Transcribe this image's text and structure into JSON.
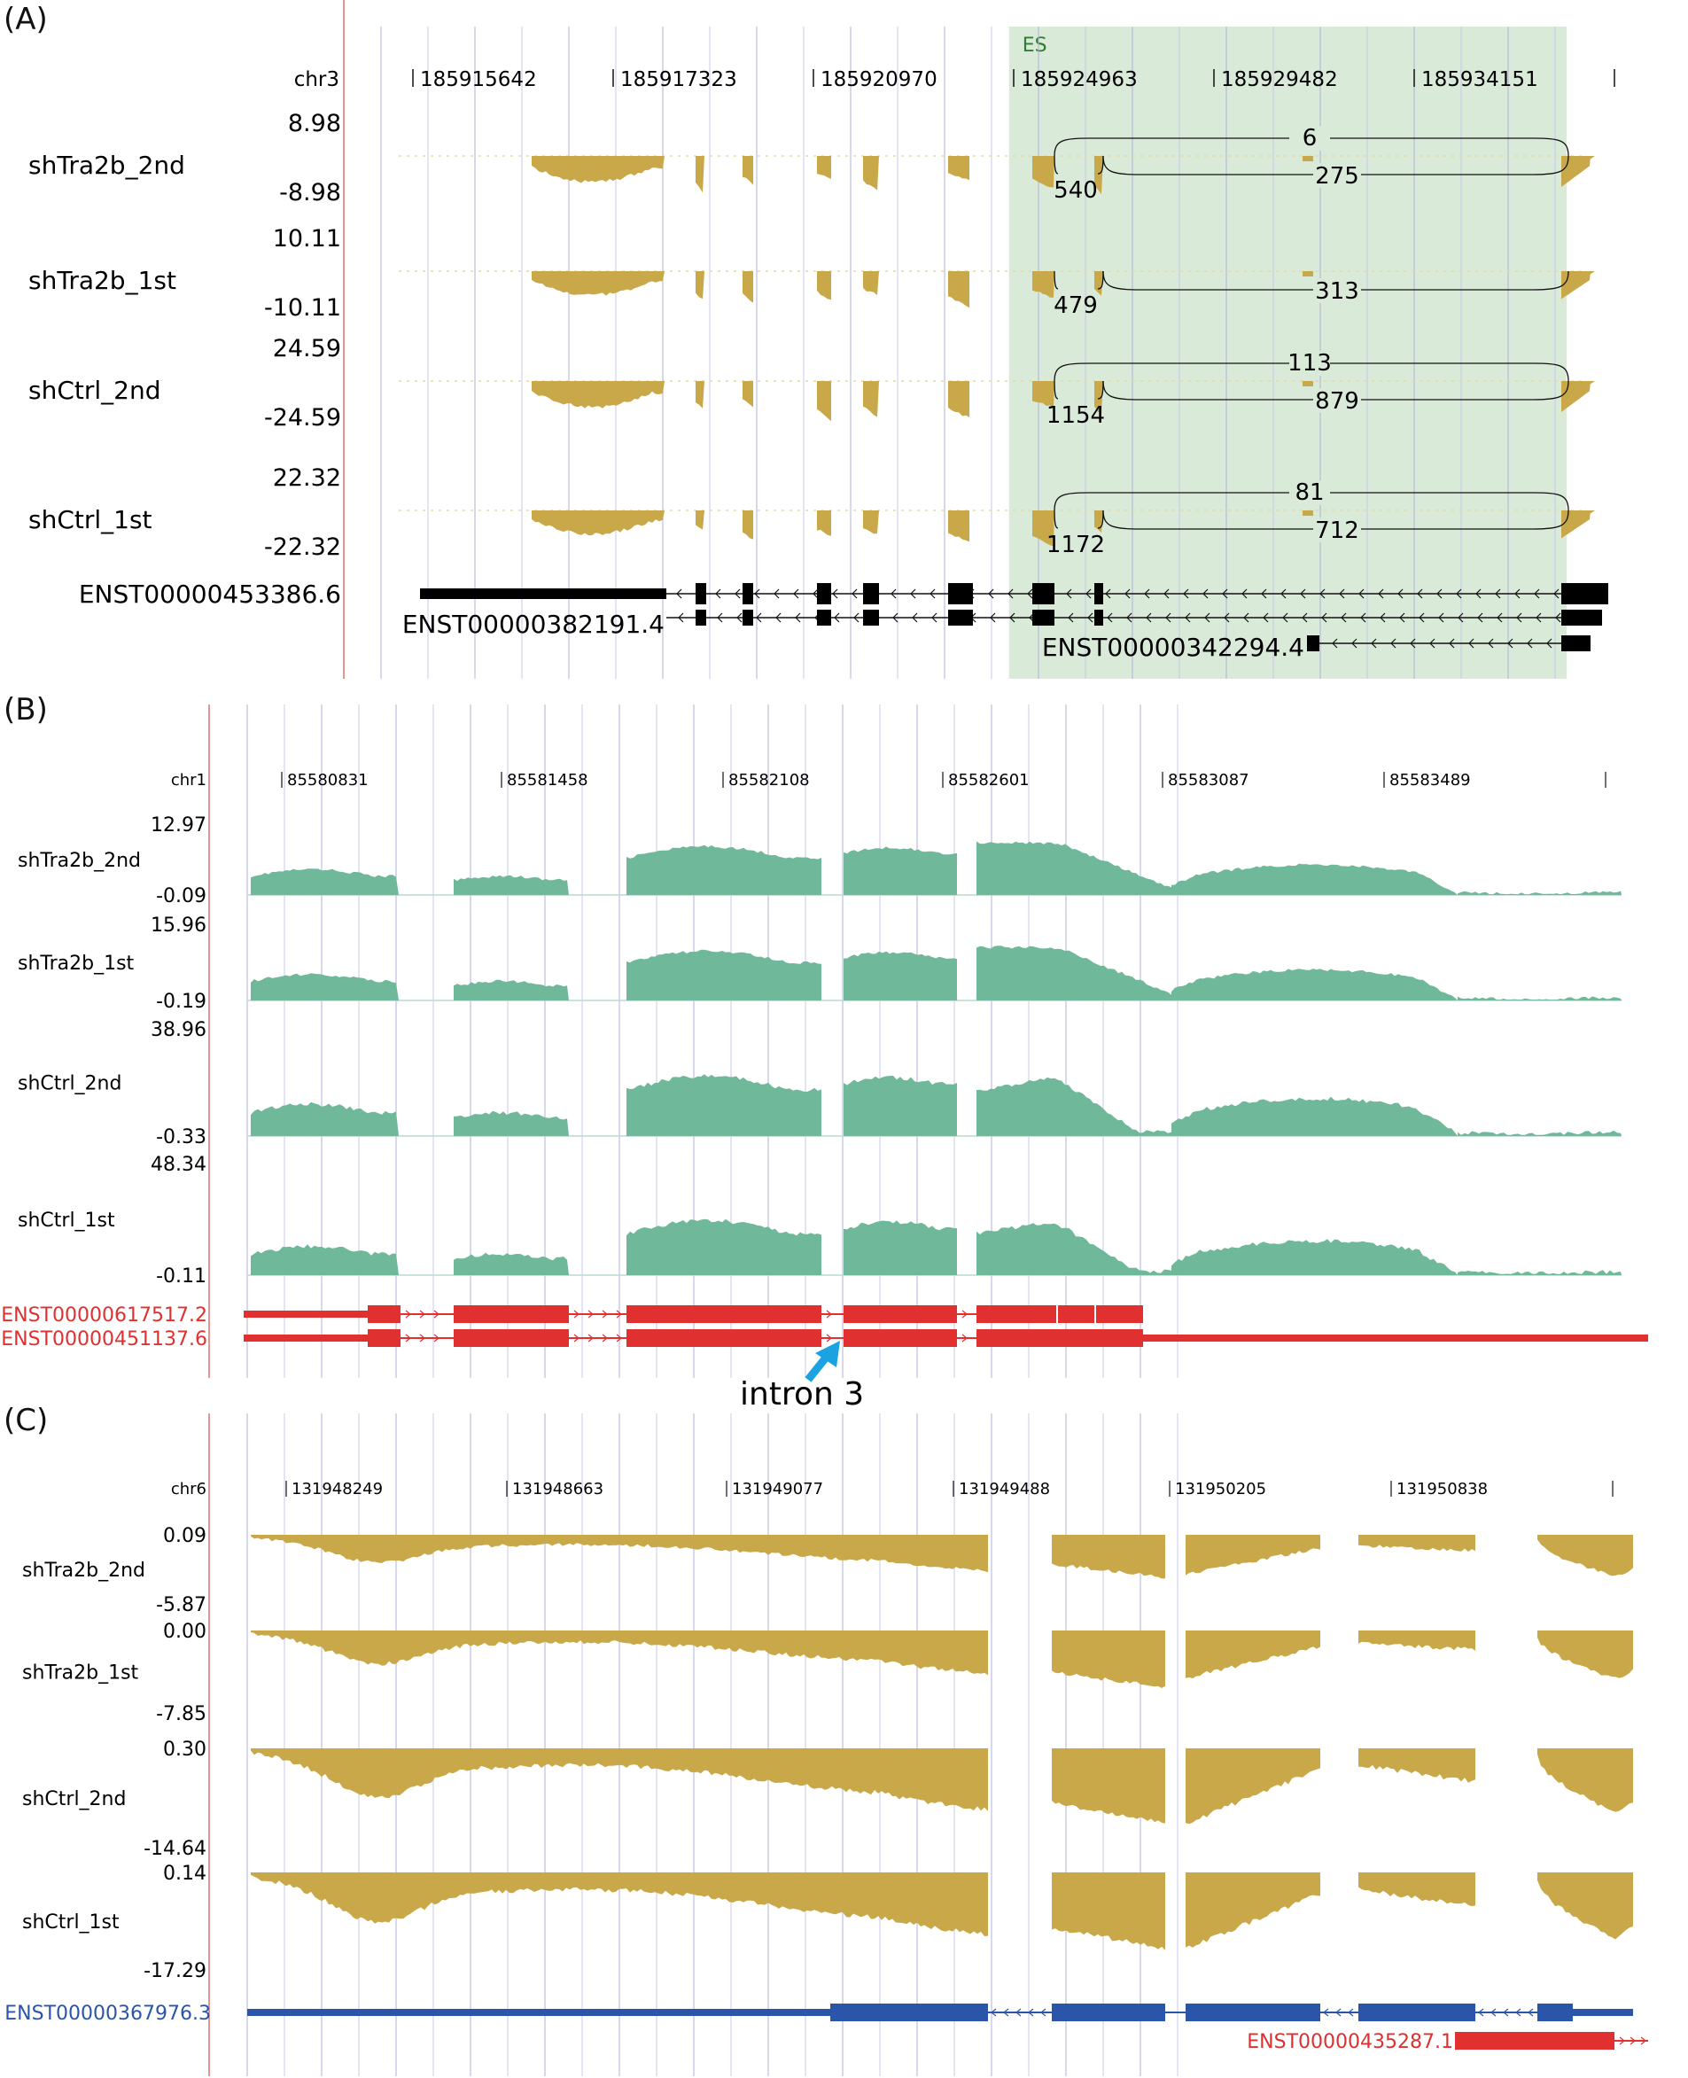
{
  "chart_data": [
    {
      "type": "area",
      "panel_label": "(A)",
      "chrom": "chr3",
      "coord_ticks": [
        "185915642",
        "185917323",
        "185920970",
        "185924963",
        "185929482",
        "185934151"
      ],
      "highlight_label": "ES",
      "highlight_range": [
        185925400,
        185936600
      ],
      "x_range": [
        185913500,
        185937700
      ],
      "color": "#c9a84a",
      "tracks": [
        {
          "name": "shTra2b_2nd",
          "ymax": "8.98",
          "ymin": "-8.98",
          "junctions": [
            "6",
            "540",
            "275"
          ]
        },
        {
          "name": "shTra2b_1st",
          "ymax": "10.11",
          "ymin": "-10.11",
          "junctions": [
            "",
            "479",
            "313"
          ]
        },
        {
          "name": "shCtrl_2nd",
          "ymax": "24.59",
          "ymin": "-24.59",
          "junctions": [
            "113",
            "1154",
            "879"
          ]
        },
        {
          "name": "shCtrl_1st",
          "ymax": "22.32",
          "ymin": "-22.32",
          "junctions": [
            "81",
            "1172",
            "712"
          ]
        }
      ],
      "transcripts": [
        "ENST00000453386.6",
        "ENST00000382191.4",
        "ENST00000342294.4"
      ]
    },
    {
      "type": "area",
      "panel_label": "(B)",
      "chrom": "chr1",
      "coord_ticks": [
        "85580831",
        "85581458",
        "85582108",
        "85582601",
        "85583087",
        "85583489"
      ],
      "x_range": [
        85580700,
        85584000
      ],
      "color": "#6fb89a",
      "tracks": [
        {
          "name": "shTra2b_2nd",
          "ymax": "12.97",
          "ymin": "-0.09"
        },
        {
          "name": "shTra2b_1st",
          "ymax": "15.96",
          "ymin": "-0.19"
        },
        {
          "name": "shCtrl_2nd",
          "ymax": "38.96",
          "ymin": "-0.33"
        },
        {
          "name": "shCtrl_1st",
          "ymax": "48.34",
          "ymin": "-0.11"
        }
      ],
      "transcripts": [
        "ENST00000617517.2",
        "ENST00000451137.6"
      ],
      "annotation": "intron 3"
    },
    {
      "type": "area",
      "panel_label": "(C)",
      "chrom": "chr6",
      "coord_ticks": [
        "131948249",
        "131948663",
        "131949077",
        "131949488",
        "131950205",
        "131950838"
      ],
      "x_range": [
        131948100,
        131951400
      ],
      "color": "#c9a84a",
      "tracks": [
        {
          "name": "shTra2b_2nd",
          "ymax": "0.09",
          "ymin": "-5.87"
        },
        {
          "name": "shTra2b_1st",
          "ymax": "0.00",
          "ymin": "-7.85"
        },
        {
          "name": "shCtrl_2nd",
          "ymax": "0.30",
          "ymin": "-14.64"
        },
        {
          "name": "shCtrl_1st",
          "ymax": "0.14",
          "ymin": "-17.29"
        }
      ],
      "transcripts": [
        "ENST00000367976.3",
        "ENST00000435287.1"
      ]
    }
  ]
}
